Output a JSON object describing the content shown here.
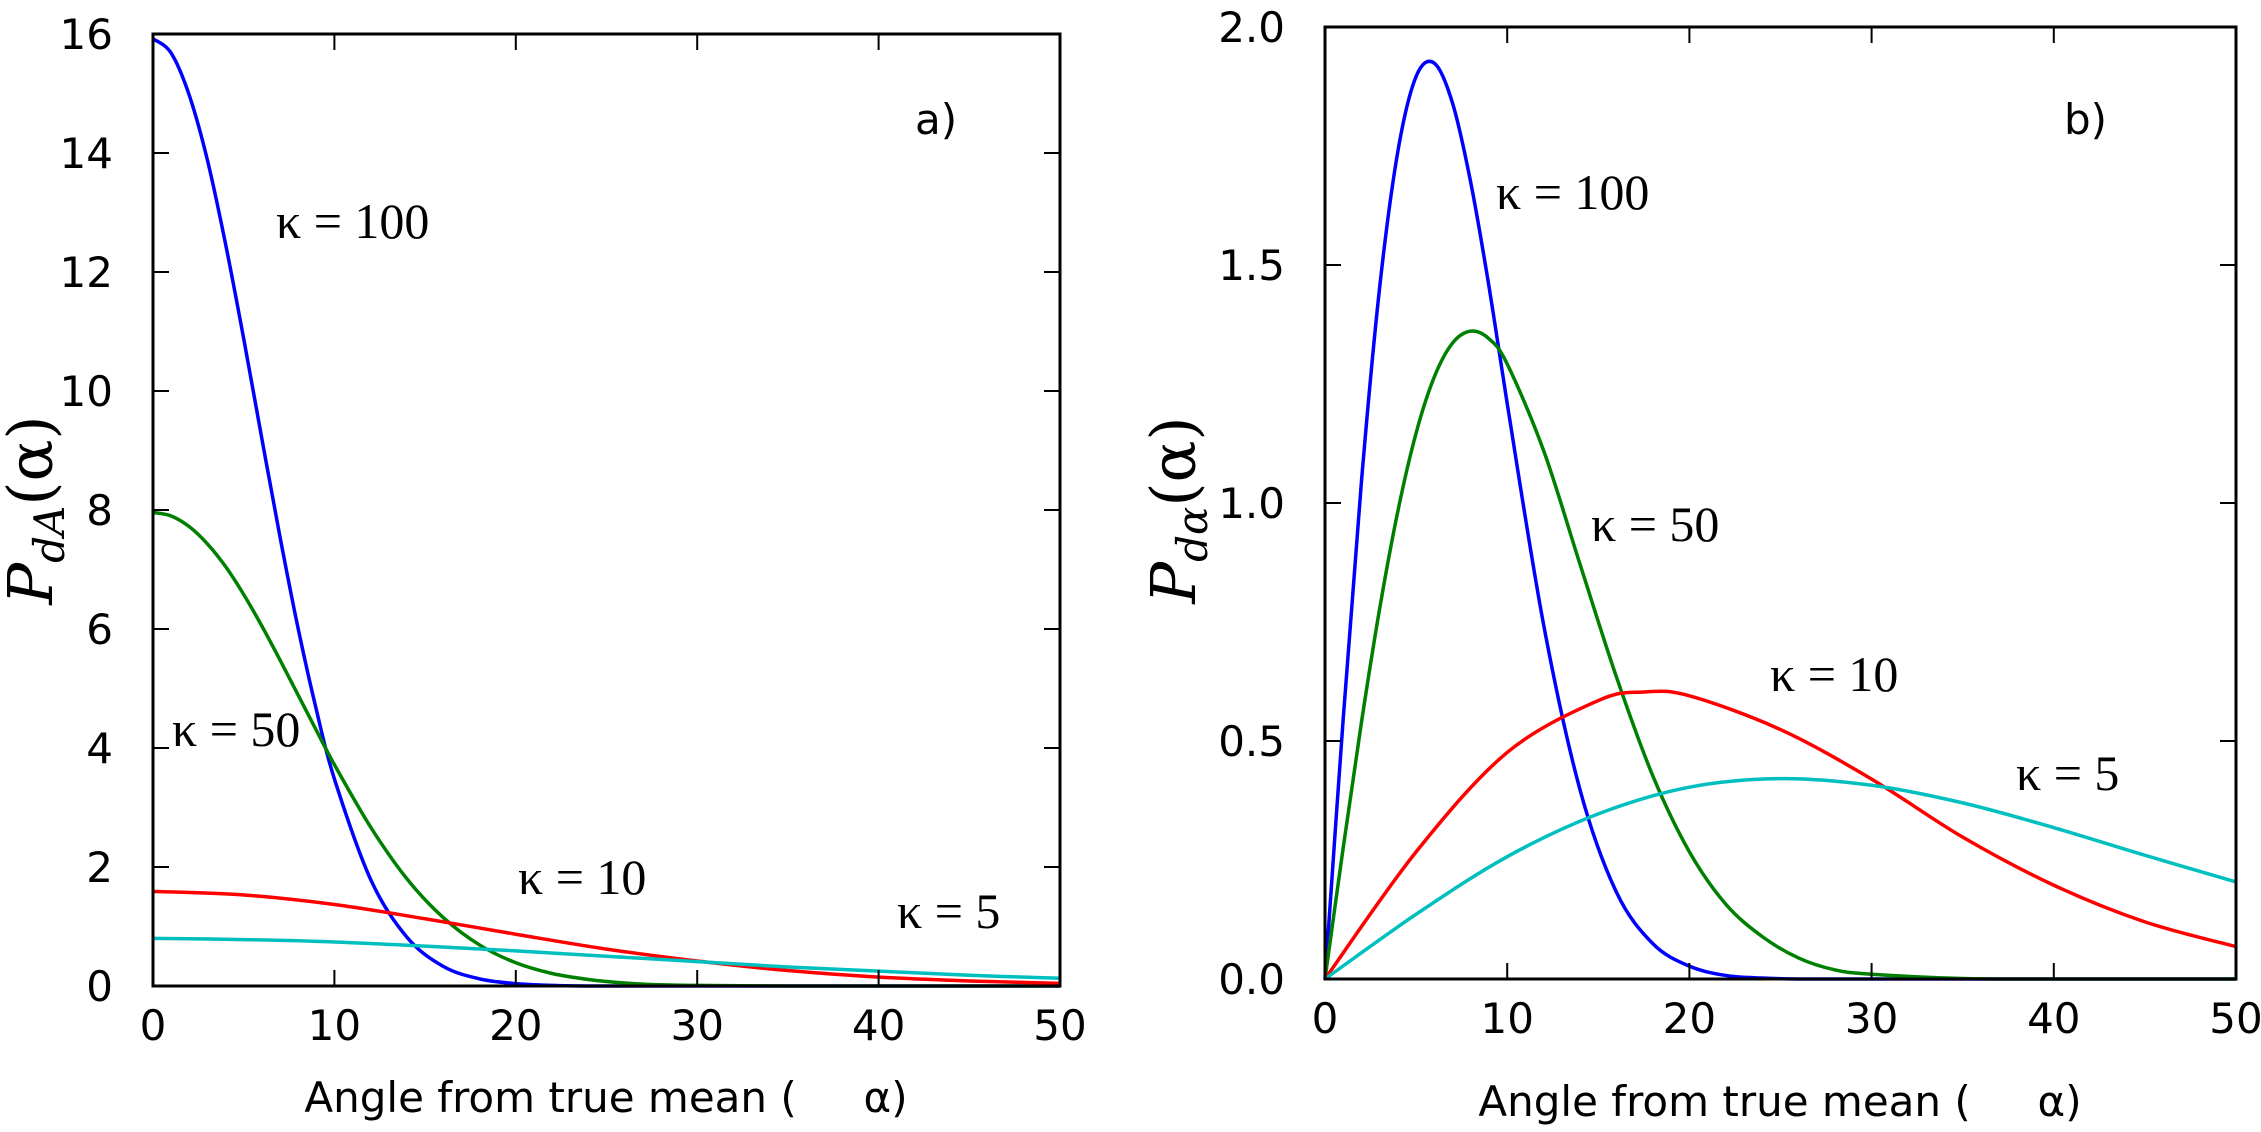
{
  "chart_data": [
    {
      "type": "line",
      "panel_label": "a)",
      "xlabel": "Angle from true mean (     α)",
      "ylabel": {
        "main": "P",
        "sub": "dA",
        "arg": "(α)"
      },
      "xlim": [
        0,
        50
      ],
      "ylim": [
        0,
        16
      ],
      "xticks": [
        "0",
        "10",
        "20",
        "30",
        "40",
        "50"
      ],
      "yticks": [
        "0",
        "2",
        "4",
        "6",
        "8",
        "10",
        "12",
        "14",
        "16"
      ],
      "grid": false,
      "series": [
        {
          "name": "κ = 100",
          "color": "#0000ff",
          "x": [
            0,
            1,
            2,
            3,
            4,
            5,
            6,
            7,
            8,
            9,
            10,
            12,
            14,
            16,
            18,
            20,
            22,
            24,
            30,
            40,
            50
          ],
          "y": [
            15.92,
            15.68,
            14.97,
            13.88,
            12.47,
            10.88,
            9.2,
            7.55,
            6.01,
            4.65,
            3.48,
            1.79,
            0.82,
            0.33,
            0.12,
            0.04,
            0.01,
            0.0,
            0.0,
            0.0,
            0.0
          ]
        },
        {
          "name": "κ = 50",
          "color": "#008000",
          "x": [
            0,
            1,
            2,
            3,
            4,
            5,
            6,
            7,
            8,
            9,
            10,
            12,
            14,
            16,
            18,
            20,
            22,
            24,
            26,
            28,
            30,
            35,
            40,
            50
          ],
          "y": [
            7.96,
            7.9,
            7.72,
            7.43,
            7.05,
            6.58,
            6.05,
            5.48,
            4.89,
            4.3,
            3.72,
            2.67,
            1.8,
            1.15,
            0.69,
            0.39,
            0.21,
            0.11,
            0.05,
            0.02,
            0.01,
            0.0,
            0.0,
            0.0
          ]
        },
        {
          "name": "κ = 10",
          "color": "#ff0000",
          "x": [
            0,
            5,
            10,
            15,
            20,
            25,
            30,
            35,
            40,
            45,
            50
          ],
          "y": [
            1.59,
            1.53,
            1.37,
            1.13,
            0.87,
            0.62,
            0.42,
            0.26,
            0.15,
            0.085,
            0.045
          ]
        },
        {
          "name": "κ = 5",
          "color": "#00bfbf",
          "x": [
            0,
            5,
            10,
            15,
            20,
            25,
            30,
            35,
            40,
            45,
            50
          ],
          "y": [
            0.8,
            0.78,
            0.74,
            0.67,
            0.59,
            0.5,
            0.41,
            0.32,
            0.25,
            0.18,
            0.13
          ]
        }
      ],
      "annotations": [
        "κ = 100",
        "κ = 50",
        "κ = 10",
        "κ = 5"
      ]
    },
    {
      "type": "line",
      "panel_label": "b)",
      "xlabel": "Angle from true mean (     α)",
      "ylabel": {
        "main": "P",
        "sub": "dα",
        "arg": "(α)"
      },
      "xlim": [
        0,
        50
      ],
      "ylim": [
        0,
        2.0
      ],
      "xticks": [
        "0",
        "10",
        "20",
        "30",
        "40",
        "50"
      ],
      "yticks": [
        "0.0",
        "0.5",
        "1.0",
        "1.5",
        "2.0"
      ],
      "grid": false,
      "series": [
        {
          "name": "κ = 100",
          "color": "#0000ff",
          "x": [
            0,
            1,
            2,
            3,
            4,
            5,
            6,
            7,
            8,
            9,
            10,
            12,
            14,
            16,
            18,
            20,
            22,
            24,
            26,
            30,
            40,
            50
          ],
          "y": [
            0,
            0.547,
            1.045,
            1.453,
            1.739,
            1.896,
            1.924,
            1.84,
            1.673,
            1.455,
            1.209,
            0.744,
            0.397,
            0.182,
            0.074,
            0.027,
            0.0075,
            0.002,
            0,
            0,
            0,
            0
          ]
        },
        {
          "name": "κ = 50",
          "color": "#008000",
          "x": [
            0,
            1,
            2,
            3,
            4,
            5,
            6,
            7,
            8,
            9,
            10,
            12,
            14,
            16,
            18,
            20,
            22,
            24,
            26,
            28,
            30,
            35,
            40,
            50
          ],
          "y": [
            0,
            0.276,
            0.539,
            0.778,
            0.983,
            1.147,
            1.265,
            1.336,
            1.361,
            1.345,
            1.292,
            1.11,
            0.871,
            0.634,
            0.426,
            0.267,
            0.157,
            0.089,
            0.044,
            0.019,
            0.01,
            0.001,
            0,
            0
          ]
        },
        {
          "name": "κ = 10",
          "color": "#ff0000",
          "x": [
            0,
            5,
            10,
            15,
            17.5,
            20,
            25,
            30,
            35,
            40,
            45,
            50
          ],
          "y": [
            0,
            0.267,
            0.476,
            0.585,
            0.603,
            0.595,
            0.524,
            0.42,
            0.298,
            0.197,
            0.12,
            0.068
          ]
        },
        {
          "name": "κ = 5",
          "color": "#00bfbf",
          "x": [
            0,
            5,
            10,
            15,
            20,
            25,
            30,
            35,
            40,
            45,
            50
          ],
          "y": [
            0,
            0.136,
            0.257,
            0.347,
            0.403,
            0.421,
            0.407,
            0.37,
            0.318,
            0.26,
            0.204
          ]
        }
      ],
      "annotations": [
        "κ = 100",
        "κ = 50",
        "κ = 10",
        "κ = 5"
      ]
    }
  ]
}
